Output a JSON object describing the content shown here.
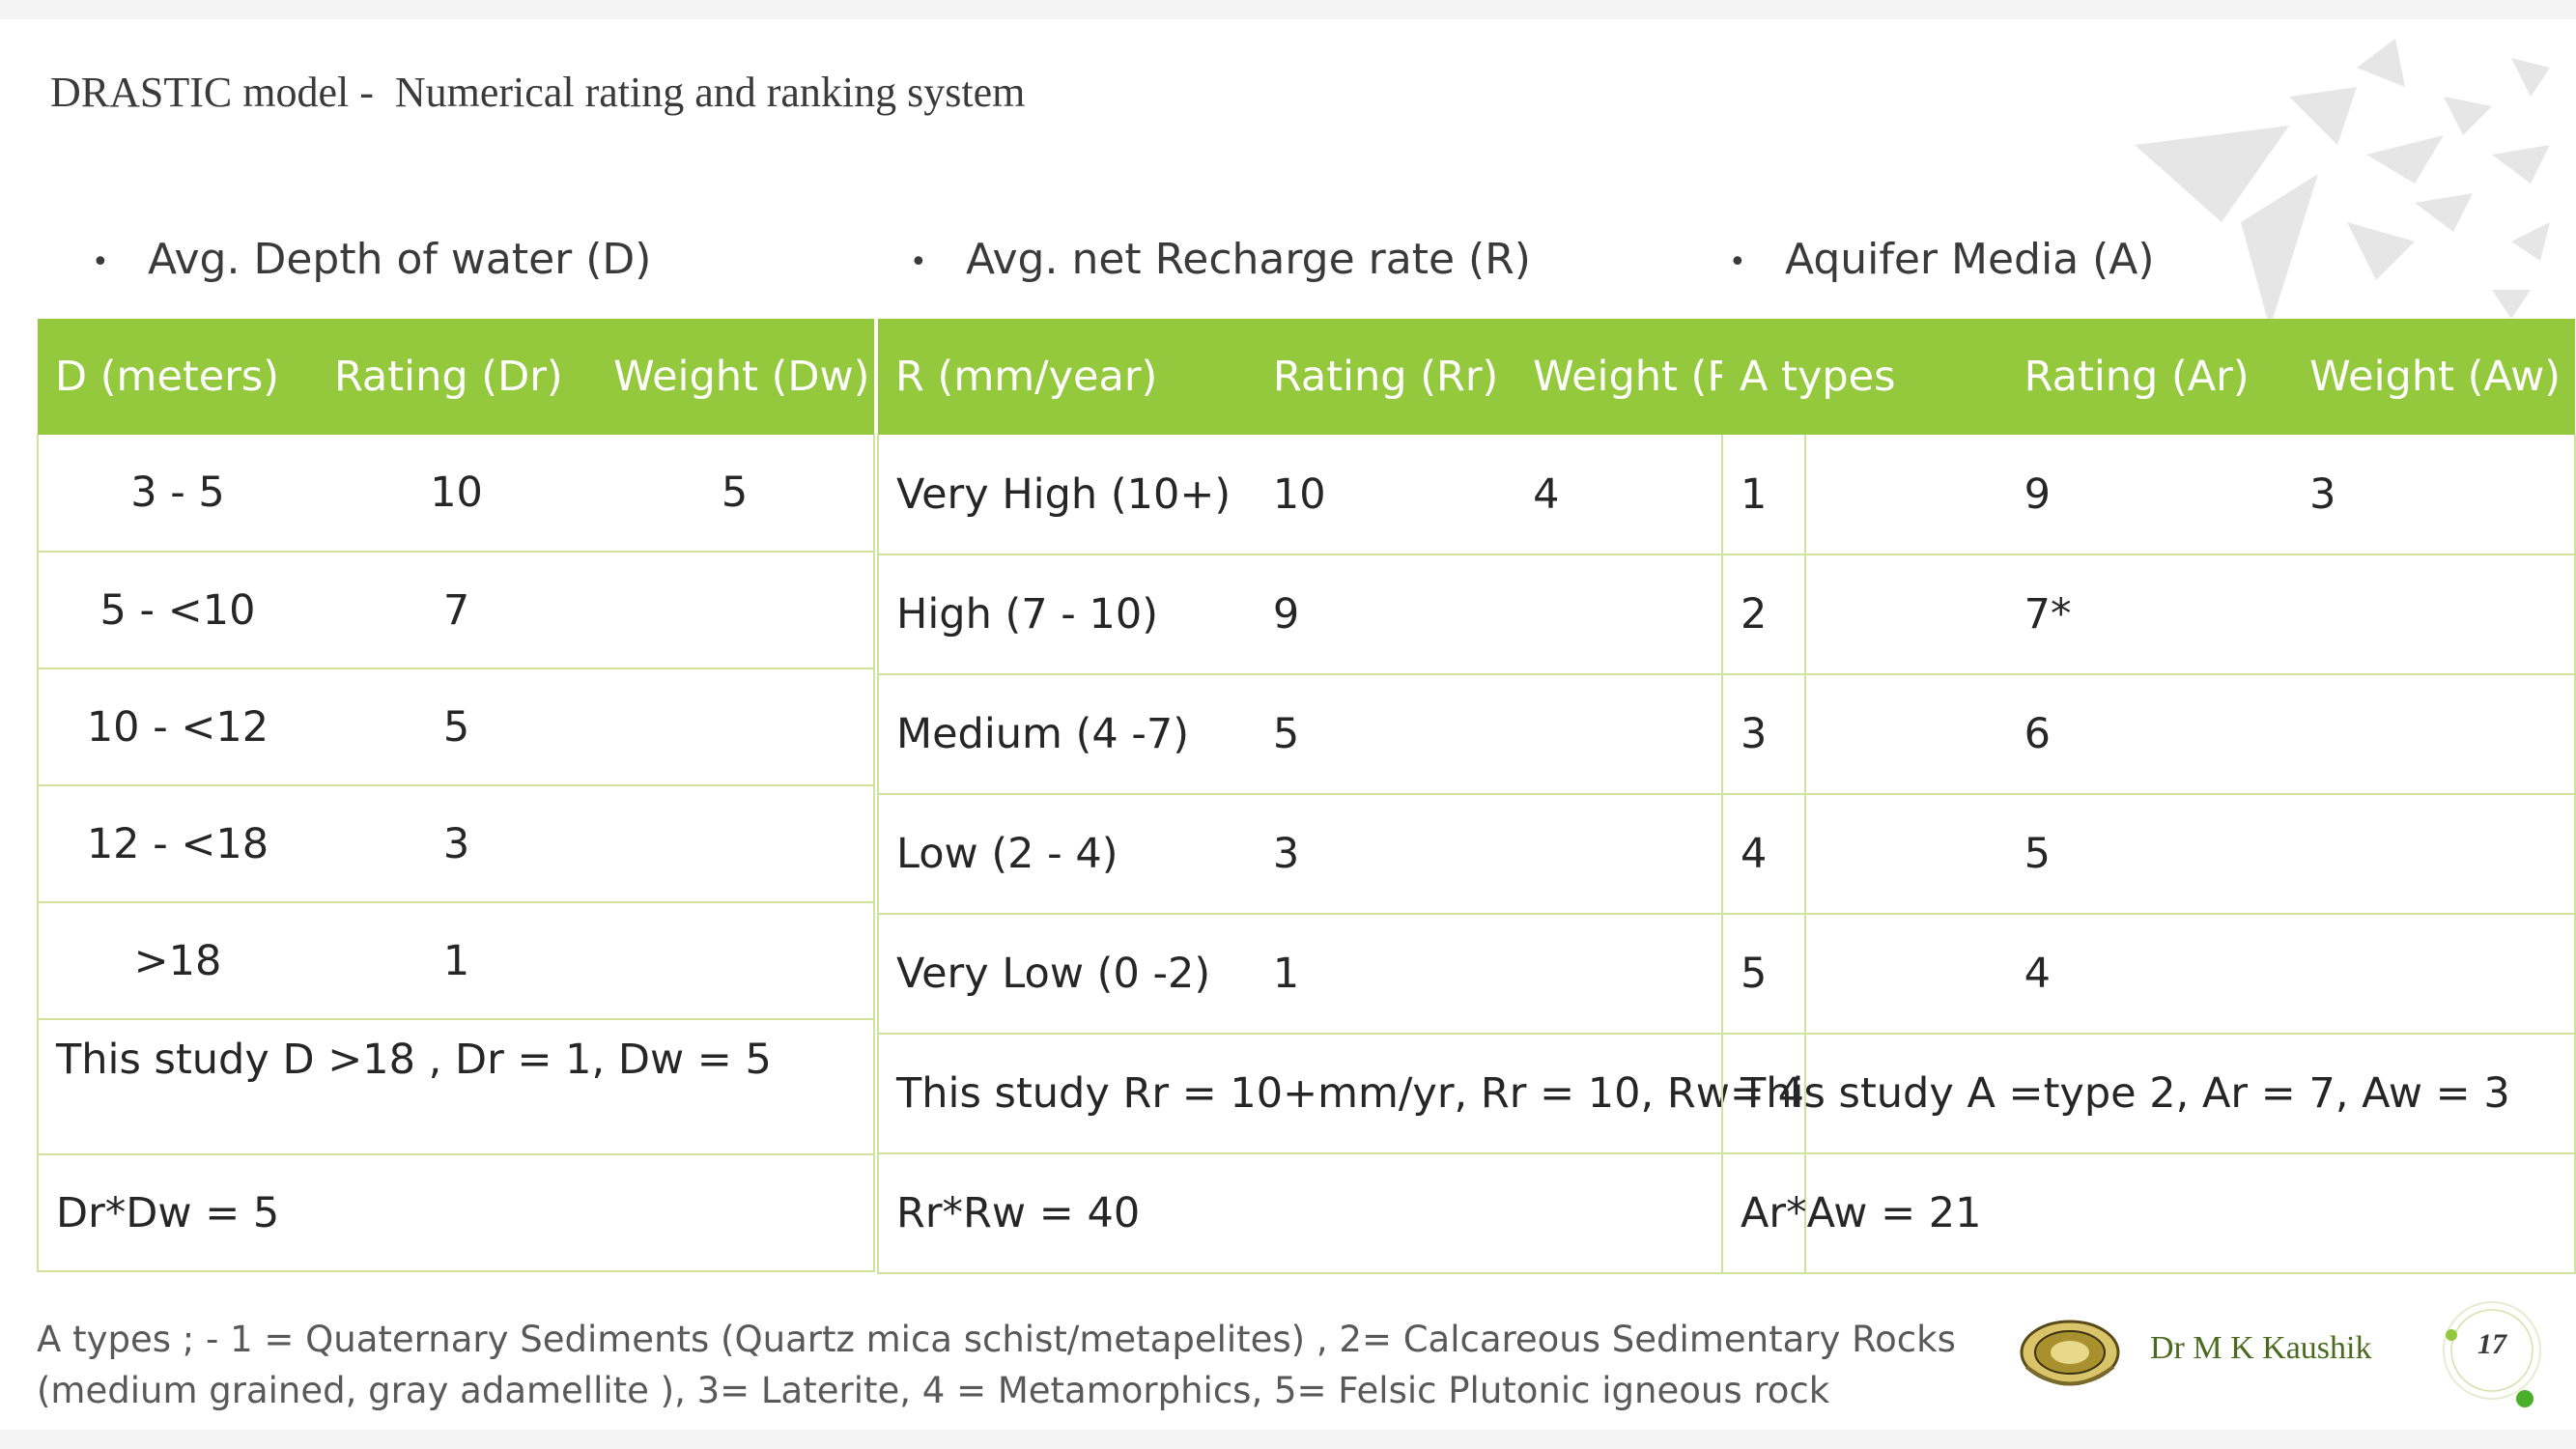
{
  "slide": {
    "title": "DRASTIC model -  Numerical rating and ranking system",
    "footnote_line1": "A types ; - 1 = Quaternary Sediments (Quartz mica schist/metapelites) , 2= Calcareous Sedimentary Rocks",
    "footnote_line2": "(medium grained, gray adamellite ), 3=  Laterite, 4 =   Metamorphics, 5= Felsic Plutonic igneous rock",
    "author": "Dr M K Kaushik",
    "page_number": "17",
    "accent_color": "#94c83d"
  },
  "depth": {
    "bullet": "Avg. Depth of water (D)",
    "headers": [
      "D (meters)",
      "Rating (Dr)",
      "Weight (Dw)"
    ],
    "rows": [
      [
        "3 - 5",
        "10",
        "5"
      ],
      [
        "5 - <10",
        "7",
        ""
      ],
      [
        "10 - <12",
        "5",
        ""
      ],
      [
        "12 - <18",
        "3",
        ""
      ],
      [
        ">18",
        "1",
        ""
      ]
    ],
    "study": "This study D >18 , Dr = 1, Dw = 5",
    "product": "Dr*Dw = 5"
  },
  "recharge": {
    "bullet": "Avg. net Recharge rate (R)",
    "headers": [
      "R (mm/year)",
      "Rating (Rr)",
      "Weight (Rw)"
    ],
    "rows": [
      [
        "Very High (10+)",
        "10",
        "4"
      ],
      [
        "High (7 - 10)",
        "9",
        ""
      ],
      [
        "Medium  (4 -7)",
        "5",
        ""
      ],
      [
        "Low (2 - 4)",
        "3",
        ""
      ],
      [
        "Very Low (0 -2)",
        "1",
        ""
      ]
    ],
    "study": "This study Rr = 10+mm/yr, Rr = 10, Rw= 4",
    "product": "Rr*Rw = 40"
  },
  "aquifer": {
    "bullet": "Aquifer Media (A)",
    "headers": [
      "A  types",
      "Rating (Ar)",
      "Weight (Aw)"
    ],
    "rows": [
      [
        "1",
        "9",
        "3"
      ],
      [
        "2",
        "7*",
        ""
      ],
      [
        "3",
        "6",
        ""
      ],
      [
        "4",
        "5",
        ""
      ],
      [
        "5",
        "4",
        ""
      ]
    ],
    "study": "This study A =type 2, Ar = 7, Aw = 3",
    "product": "Ar*Aw = 21"
  }
}
